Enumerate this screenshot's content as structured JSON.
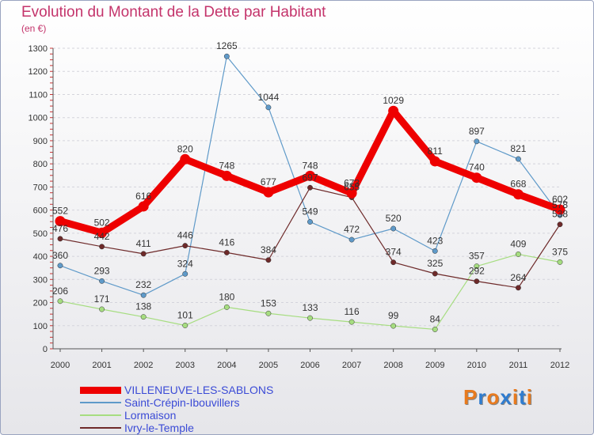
{
  "title": "Evolution du Montant de la Dette par Habitant",
  "unit": "(en €)",
  "brand": {
    "text": "Proxiti",
    "colors": [
      "#e87a1e",
      "#2f7ccf",
      "#e87a1e",
      "#2f7ccf",
      "#e87a1e",
      "#2f7ccf",
      "#e87a1e"
    ]
  },
  "chart_data": {
    "type": "line",
    "x": [
      "2000",
      "2001",
      "2002",
      "2003",
      "2004",
      "2005",
      "2006",
      "2007",
      "2008",
      "2009",
      "2010",
      "2011",
      "2012"
    ],
    "ylim": [
      0,
      1300
    ],
    "yticks": [
      0,
      100,
      200,
      300,
      400,
      500,
      600,
      700,
      800,
      900,
      1000,
      1100,
      1200,
      1300
    ],
    "grid": "horizontal",
    "legend": "bottom-left",
    "series": [
      {
        "name": "Saint-Crépin-Ibouvillers",
        "color": "#5f9ac9",
        "values": [
          360,
          293,
          232,
          324,
          1265,
          1044,
          549,
          472,
          520,
          423,
          897,
          821,
          578
        ]
      },
      {
        "name": "Lormaison",
        "color": "#a6dd80",
        "values": [
          206,
          171,
          138,
          101,
          180,
          153,
          133,
          116,
          99,
          84,
          357,
          409,
          375
        ]
      },
      {
        "name": "Ivry-le-Temple",
        "color": "#6e2a2a",
        "values": [
          476,
          442,
          411,
          446,
          416,
          384,
          697,
          655,
          374,
          325,
          292,
          264,
          538
        ]
      },
      {
        "name": "VILLENEUVE-LES-SABLONS",
        "color": "#ee0000",
        "highlight": true,
        "values": [
          552,
          502,
          616,
          820,
          748,
          677,
          748,
          673,
          1029,
          811,
          740,
          668,
          602
        ]
      }
    ],
    "data_labels": [
      {
        "series": 0,
        "values": [
          "360",
          "293",
          "232",
          "324",
          "1265",
          "1044",
          "549",
          "472",
          "520",
          "423",
          "897",
          "821",
          "578"
        ]
      },
      {
        "series": 1,
        "values": [
          "206",
          "171",
          "138",
          "101",
          "180",
          "153",
          "133",
          "116",
          "99",
          "84",
          "357",
          "409",
          "375"
        ]
      },
      {
        "series": 2,
        "values": [
          "476",
          "442",
          "411",
          "446",
          "416",
          "384",
          "697",
          "655",
          "374",
          "325",
          "292",
          "264",
          "538"
        ]
      },
      {
        "series": 3,
        "values": [
          "552",
          "502",
          "616",
          "820",
          "748",
          "677",
          "748",
          "673",
          "1029",
          "811",
          "740",
          "668",
          "602"
        ]
      }
    ]
  },
  "legend_order": [
    3,
    0,
    1,
    2
  ]
}
